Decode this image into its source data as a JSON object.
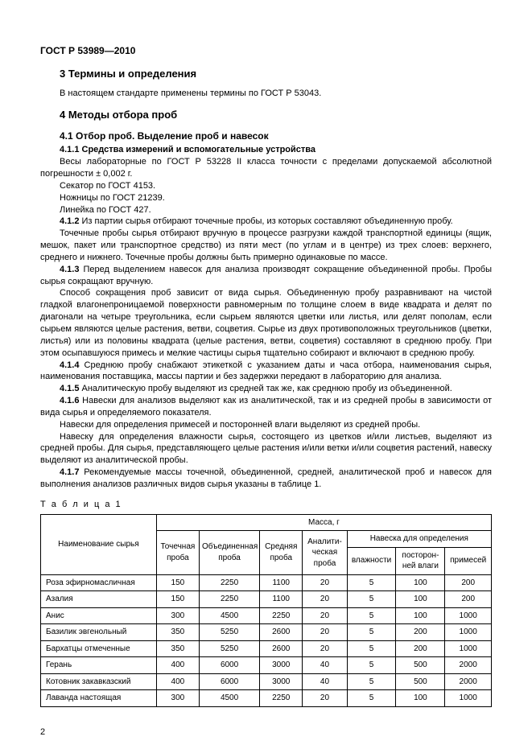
{
  "doc_header": "ГОСТ Р 53989—2010",
  "page_number": "2",
  "sec3": {
    "title": "3  Термины и определения",
    "body": "В настоящем стандарте применены термины по ГОСТ Р 53043."
  },
  "sec4": {
    "title": "4  Методы отбора проб",
    "h41": "4.1  Отбор проб. Выделение проб и навесок",
    "h411": "4.1.1  Средства измерений и вспомогательные устройства",
    "p411a": "Весы лабораторные по ГОСТ Р 53228 II класса точности с пределами допускаемой абсолютной погрешности ± 0,002 г.",
    "p411b": "Секатор по ГОСТ 4153.",
    "p411c": "Ножницы по ГОСТ 21239.",
    "p411d": "Линейка по ГОСТ 427.",
    "p412a_label": "4.1.2",
    "p412a": "  Из партии сырья отбирают точечные пробы, из которых составляют объединенную пробу.",
    "p412b": "Точечные пробы сырья отбирают вручную в процессе разгрузки каждой транспортной единицы (ящик, мешок, пакет или транспортное средство) из пяти мест (по углам и в центре) из трех слоев: верхнего, среднего и нижнего. Точечные пробы должны быть примерно одинаковые по массе.",
    "p413_label": "4.1.3",
    "p413a": "  Перед выделением навесок для анализа производят сокращение объединенной пробы. Пробы сырья сокращают вручную.",
    "p413b": "Способ сокращения проб зависит от вида сырья. Объединенную пробу разравнивают на чистой гладкой влагонепроницаемой поверхности равномерным по толщине слоем в виде квадрата и делят по диагонали на четыре треугольника, если сырьем являются цветки или листья, или делят пополам, если сырьем являются целые растения, ветви, соцветия. Сырье из двух противоположных треугольников (цветки, листья) или из половины квадрата (целые растения, ветви, соцветия) составляют в среднюю пробу. При этом осыпавшуюся примесь и мелкие частицы сырья тщательно собирают и включают в среднюю пробу.",
    "p414_label": "4.1.4",
    "p414": "  Среднюю пробу снабжают этикеткой с указанием даты и часа отбора, наименования сырья, наименования поставщика, массы партии и без задержки передают в лабораторию для анализа.",
    "p415_label": "4.1.5",
    "p415": "  Аналитическую пробу выделяют из средней так же, как среднюю пробу из объединенной.",
    "p416_label": "4.1.6",
    "p416a": "  Навески для анализов выделяют как из аналитической, так и из средней пробы в зависимости от вида сырья и определяемого показателя.",
    "p416b": "Навески для определения примесей и посторонней влаги выделяют из средней пробы.",
    "p416c": "Навеску для определения влажности сырья, состоящего из цветков и/или листьев, выделяют из средней пробы. Для сырья, представляющего целые растения и/или ветки и/или соцветия растений, навеску выделяют из аналитической пробы.",
    "p417_label": "4.1.7",
    "p417": "  Рекомендуемые массы точечной, объединенной, средней, аналитической проб и навесок для выполнения анализов различных видов сырья указаны в таблице 1."
  },
  "table": {
    "caption": "Т а б л и ц а  1",
    "mass_header": "Масса, г",
    "col_name": "Наименование сырья",
    "col_point": "Точечная проба",
    "col_comb": "Объединенная проба",
    "col_avg": "Средняя проба",
    "col_anal": "Аналити-\nческая проба",
    "col_nav": "Навеска для определения",
    "col_hum": "влажности",
    "col_ext": "посторон-\nней влаги",
    "col_imp": "примесей",
    "rows": [
      {
        "n": "Роза эфирномасличная",
        "a": "150",
        "b": "2250",
        "c": "1100",
        "d": "20",
        "e": "5",
        "f": "100",
        "g": "200"
      },
      {
        "n": "Азалия",
        "a": "150",
        "b": "2250",
        "c": "1100",
        "d": "20",
        "e": "5",
        "f": "100",
        "g": "200"
      },
      {
        "n": "Анис",
        "a": "300",
        "b": "4500",
        "c": "2250",
        "d": "20",
        "e": "5",
        "f": "100",
        "g": "1000"
      },
      {
        "n": "Базилик эвгенольный",
        "a": "350",
        "b": "5250",
        "c": "2600",
        "d": "20",
        "e": "5",
        "f": "200",
        "g": "1000"
      },
      {
        "n": "Бархатцы отмеченные",
        "a": "350",
        "b": "5250",
        "c": "2600",
        "d": "20",
        "e": "5",
        "f": "200",
        "g": "1000"
      },
      {
        "n": "Герань",
        "a": "400",
        "b": "6000",
        "c": "3000",
        "d": "40",
        "e": "5",
        "f": "500",
        "g": "2000"
      },
      {
        "n": "Котовник закавказский",
        "a": "400",
        "b": "6000",
        "c": "3000",
        "d": "40",
        "e": "5",
        "f": "500",
        "g": "2000"
      },
      {
        "n": "Лаванда настоящая",
        "a": "300",
        "b": "4500",
        "c": "2250",
        "d": "20",
        "e": "5",
        "f": "100",
        "g": "1000"
      }
    ],
    "col_widths": {
      "name": 130,
      "a": 48,
      "b": 68,
      "c": 48,
      "d": 50,
      "e": 55,
      "f": 55,
      "g": 52
    }
  }
}
